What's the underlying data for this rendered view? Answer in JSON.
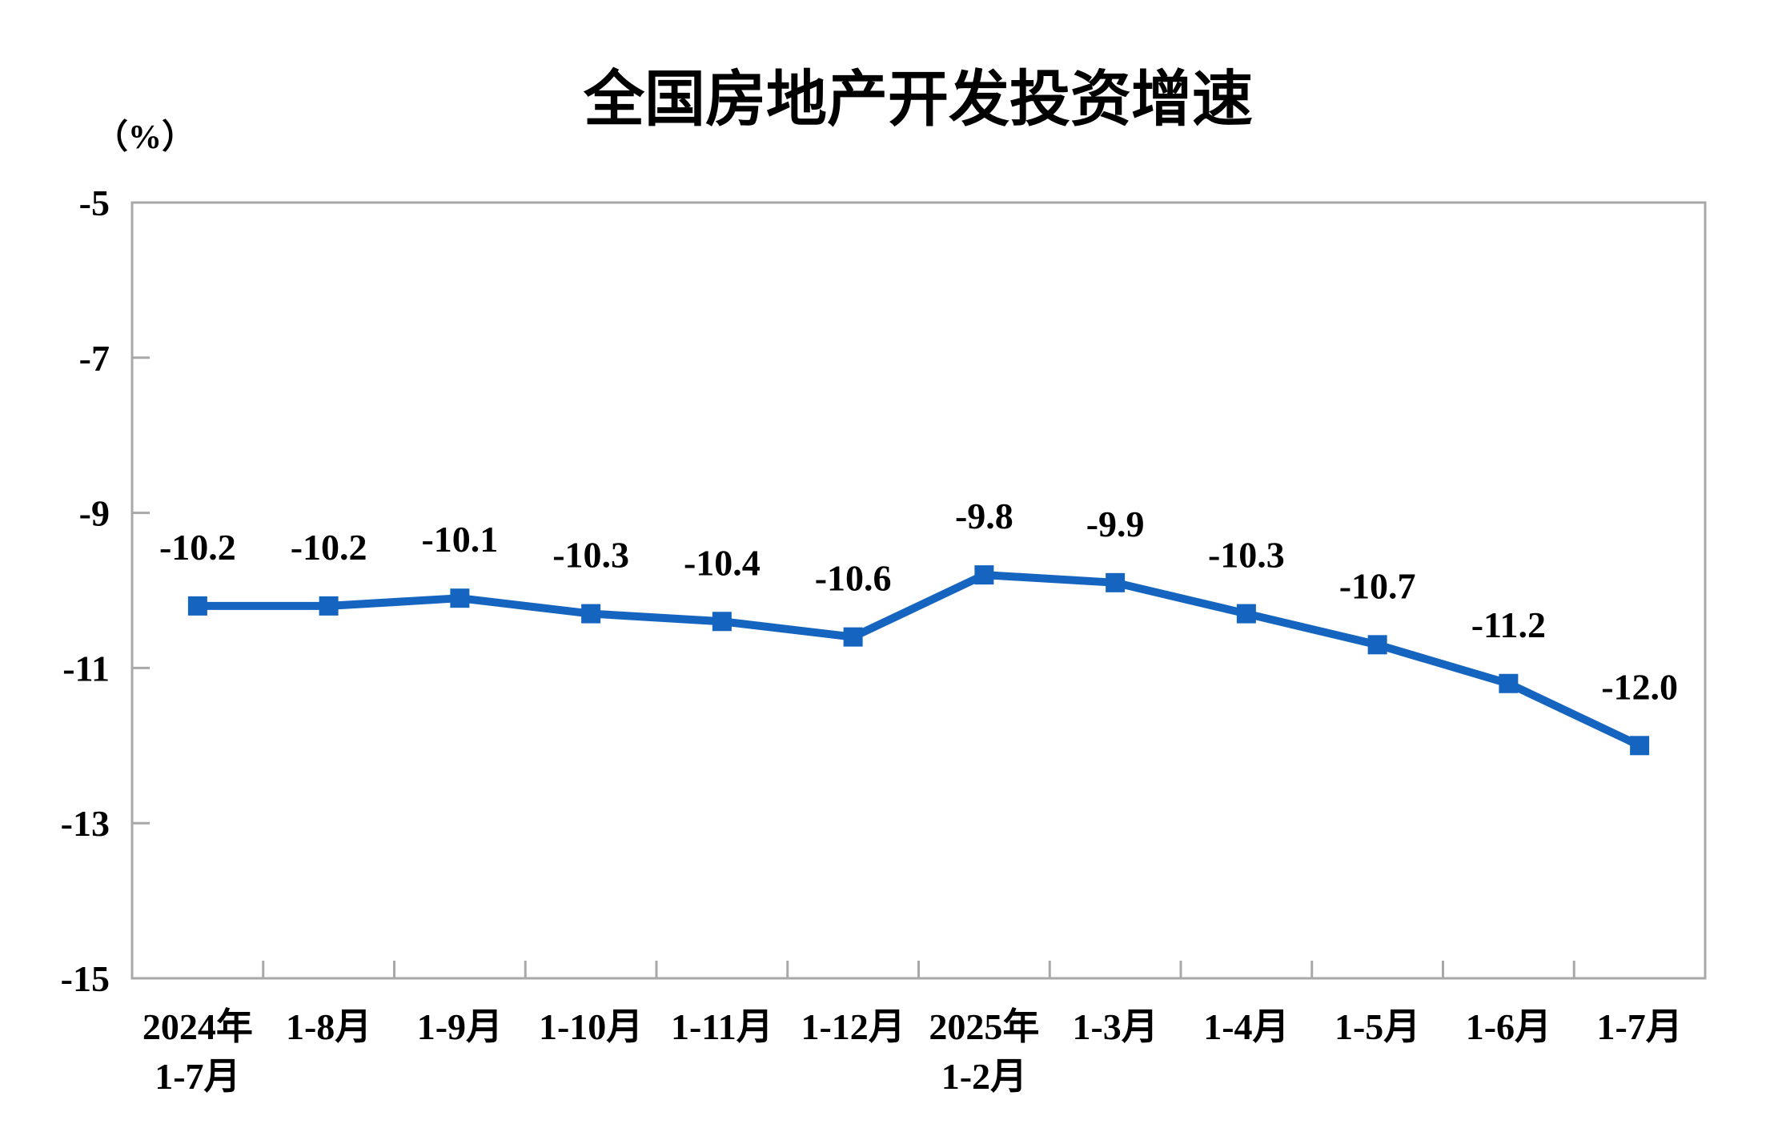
{
  "page": {
    "background_color": "#ffffff"
  },
  "chart_data": {
    "type": "line",
    "title": "全国房地产开发投资增速",
    "unit_label": "（%）",
    "series_name": "全国房地产开发投资增速",
    "categories": [
      [
        "2024年",
        "1-7月"
      ],
      [
        "1-8月"
      ],
      [
        "1-9月"
      ],
      [
        "1-10月"
      ],
      [
        "1-11月"
      ],
      [
        "1-12月"
      ],
      [
        "2025年",
        "1-2月"
      ],
      [
        "1-3月"
      ],
      [
        "1-4月"
      ],
      [
        "1-5月"
      ],
      [
        "1-6月"
      ],
      [
        "1-7月"
      ]
    ],
    "values": [
      -10.2,
      -10.2,
      -10.1,
      -10.3,
      -10.4,
      -10.6,
      -9.8,
      -9.9,
      -10.3,
      -10.7,
      -11.2,
      -12.0
    ],
    "data_labels": [
      "-10.2",
      "-10.2",
      "-10.1",
      "-10.3",
      "-10.4",
      "-10.6",
      "-9.8",
      "-9.9",
      "-10.3",
      "-10.7",
      "-11.2",
      "-12.0"
    ],
    "y_ticks": [
      -5,
      -7,
      -9,
      -11,
      -13,
      -15
    ],
    "y_tick_labels": [
      "-5",
      "-7",
      "-9",
      "-11",
      "-13",
      "-15"
    ],
    "ylim": [
      -15,
      -5
    ],
    "grid": "off",
    "legend": "none",
    "marker": "square",
    "colors": {
      "line": "#1565C0",
      "marker": "#1565C0",
      "axis": "#A8A8A8",
      "text": "#000000"
    }
  }
}
